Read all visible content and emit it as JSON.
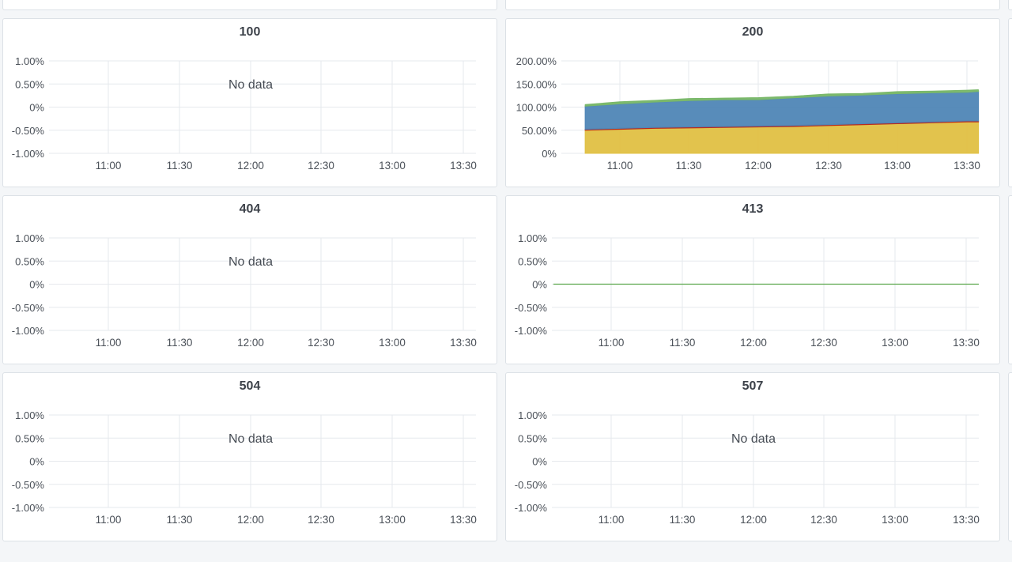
{
  "panels": [
    {
      "id": "p100",
      "title": "100",
      "no_data": "No data"
    },
    {
      "id": "p200",
      "title": "200",
      "no_data": ""
    },
    {
      "id": "p404",
      "title": "404",
      "no_data": "No data"
    },
    {
      "id": "p413",
      "title": "413",
      "no_data": ""
    },
    {
      "id": "p504",
      "title": "504",
      "no_data": "No data"
    },
    {
      "id": "p507",
      "title": "507",
      "no_data": "No data"
    }
  ],
  "chart_data": [
    {
      "type": "line",
      "title": "100",
      "yticks": [
        "1.00%",
        "0.50%",
        "0%",
        "-0.50%",
        "-1.00%"
      ],
      "ylim": [
        -1.0,
        1.0
      ],
      "xticks": [
        "11:00",
        "11:30",
        "12:00",
        "12:30",
        "13:00",
        "13:30"
      ],
      "series": []
    },
    {
      "type": "area",
      "title": "200",
      "stacked": true,
      "yticks": [
        "200.00%",
        "150.00%",
        "100.00%",
        "50.00%",
        "0%"
      ],
      "ylim": [
        0,
        200
      ],
      "xticks": [
        "11:00",
        "11:30",
        "12:00",
        "12:30",
        "13:00",
        "13:30"
      ],
      "x": [
        "10:45",
        "11:00",
        "11:15",
        "11:30",
        "11:45",
        "12:00",
        "12:15",
        "12:30",
        "12:45",
        "13:00",
        "13:15",
        "13:30",
        "13:35"
      ],
      "series": [
        {
          "color": "#e0c043",
          "values": [
            50,
            52,
            54,
            55,
            56,
            57,
            58,
            60,
            62,
            64,
            66,
            68,
            68
          ]
        },
        {
          "color": "#b82a1f",
          "values": [
            2,
            2,
            2,
            2,
            2,
            2,
            2,
            2,
            2,
            2,
            2,
            2,
            2
          ]
        },
        {
          "color": "#4f86b6",
          "values": [
            50,
            53,
            55,
            57,
            58,
            57,
            60,
            62,
            62,
            63,
            63,
            62,
            64
          ]
        },
        {
          "color": "#7ab86a",
          "values": [
            3,
            4,
            3,
            4,
            3,
            4,
            3,
            4,
            3,
            4,
            3,
            4,
            3
          ]
        }
      ]
    },
    {
      "type": "line",
      "title": "404",
      "yticks": [
        "1.00%",
        "0.50%",
        "0%",
        "-0.50%",
        "-1.00%"
      ],
      "ylim": [
        -1.0,
        1.0
      ],
      "xticks": [
        "11:00",
        "11:30",
        "12:00",
        "12:30",
        "13:00",
        "13:30"
      ],
      "series": []
    },
    {
      "type": "line",
      "title": "413",
      "yticks": [
        "1.00%",
        "0.50%",
        "0%",
        "-0.50%",
        "-1.00%"
      ],
      "ylim": [
        -1.0,
        1.0
      ],
      "xticks": [
        "11:00",
        "11:30",
        "12:00",
        "12:30",
        "13:00",
        "13:30"
      ],
      "series": [
        {
          "color": "#5aa64b",
          "values": [
            0,
            0
          ]
        }
      ]
    },
    {
      "type": "line",
      "title": "504",
      "yticks": [
        "1.00%",
        "0.50%",
        "0%",
        "-0.50%",
        "-1.00%"
      ],
      "ylim": [
        -1.0,
        1.0
      ],
      "xticks": [
        "11:00",
        "11:30",
        "12:00",
        "12:30",
        "13:00",
        "13:30"
      ],
      "series": []
    },
    {
      "type": "line",
      "title": "507",
      "yticks": [
        "1.00%",
        "0.50%",
        "0%",
        "-0.50%",
        "-1.00%"
      ],
      "ylim": [
        -1.0,
        1.0
      ],
      "xticks": [
        "11:00",
        "11:30",
        "12:00",
        "12:30",
        "13:00",
        "13:30"
      ],
      "series": []
    }
  ]
}
